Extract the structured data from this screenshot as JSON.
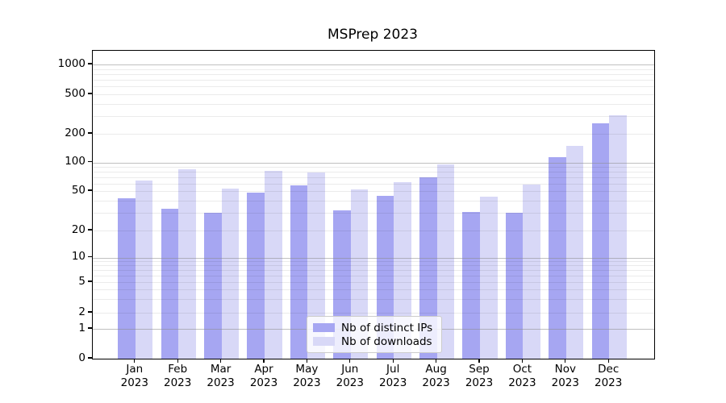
{
  "title": "MSPrep 2023",
  "chart_data": {
    "type": "bar",
    "title": "MSPrep 2023",
    "categories": [
      "Jan",
      "Feb",
      "Mar",
      "Apr",
      "May",
      "Jun",
      "Jul",
      "Aug",
      "Sep",
      "Oct",
      "Nov",
      "Dec"
    ],
    "category_year": "2023",
    "series": [
      {
        "name": "Nb of distinct IPs",
        "color": "#a6a6f2",
        "values": [
          42,
          33,
          30,
          48,
          57,
          32,
          45,
          70,
          31,
          30,
          115,
          255
        ]
      },
      {
        "name": "Nb of downloads",
        "color": "#d8d8f7",
        "values": [
          65,
          85,
          53,
          82,
          78,
          52,
          62,
          95,
          44,
          58,
          150,
          310
        ]
      }
    ],
    "ylabel": "",
    "xlabel": "",
    "yscale": "symlog",
    "yticks": [
      0,
      1,
      2,
      5,
      10,
      20,
      50,
      100,
      200,
      500,
      1000
    ],
    "ylim": [
      0,
      1400
    ],
    "grid": "horizontal, major and minor, drawn over bars",
    "legend_position": "lower center inside plot"
  }
}
